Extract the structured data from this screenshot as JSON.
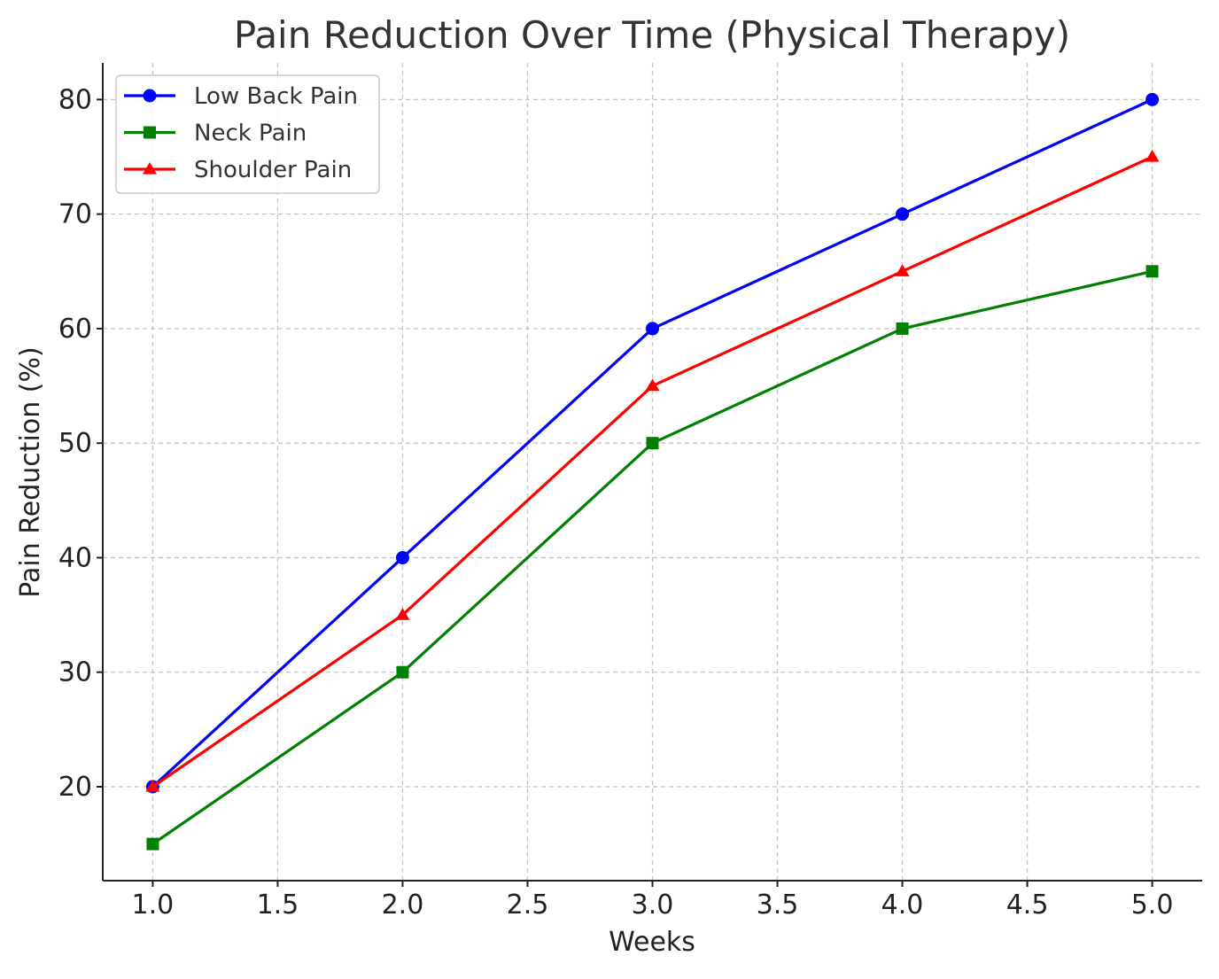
{
  "chart_data": {
    "type": "line",
    "title": "Pain Reduction Over Time (Physical Therapy)",
    "xlabel": "Weeks",
    "ylabel": "Pain Reduction (%)",
    "x": [
      1,
      2,
      3,
      4,
      5
    ],
    "xlim": [
      0.8,
      5.2
    ],
    "ylim": [
      11.8,
      83.2
    ],
    "xticks": [
      1.0,
      1.5,
      2.0,
      2.5,
      3.0,
      3.5,
      4.0,
      4.5,
      5.0
    ],
    "xtick_labels": [
      "1.0",
      "1.5",
      "2.0",
      "2.5",
      "3.0",
      "3.5",
      "4.0",
      "4.5",
      "5.0"
    ],
    "yticks": [
      20,
      30,
      40,
      50,
      60,
      70,
      80
    ],
    "ytick_labels": [
      "20",
      "30",
      "40",
      "50",
      "60",
      "70",
      "80"
    ],
    "grid": true,
    "legend_position": "top-left",
    "series": [
      {
        "name": "Low Back Pain",
        "values": [
          20,
          40,
          60,
          70,
          80
        ],
        "color": "#0000ff",
        "marker": "circle"
      },
      {
        "name": "Neck Pain",
        "values": [
          15,
          30,
          50,
          60,
          65
        ],
        "color": "#008000",
        "marker": "square"
      },
      {
        "name": "Shoulder Pain",
        "values": [
          20,
          35,
          55,
          65,
          75
        ],
        "color": "#ff0000",
        "marker": "triangle"
      }
    ]
  }
}
